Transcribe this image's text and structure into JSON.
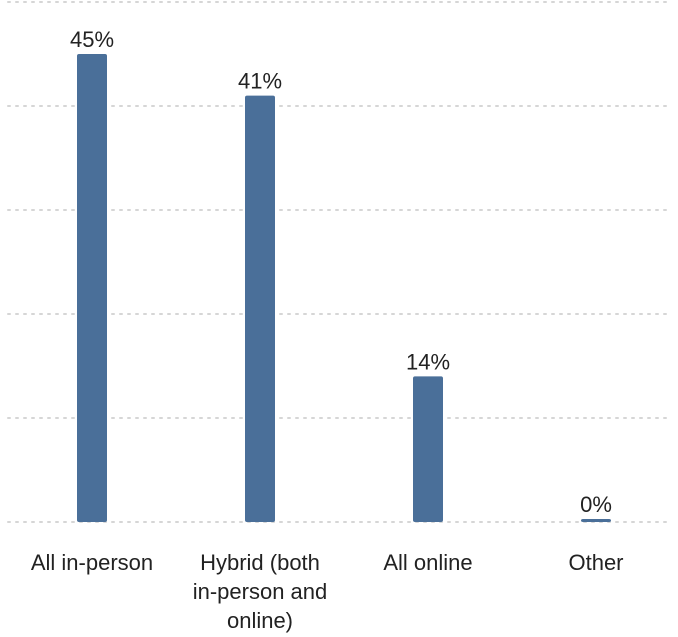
{
  "chart_data": {
    "type": "bar",
    "categories": [
      "All in-person",
      "Hybrid (both in-person and online)",
      "All online",
      "Other"
    ],
    "category_label_lines": [
      [
        "All in-person"
      ],
      [
        "Hybrid (both",
        "in-person and",
        "online)"
      ],
      [
        "All online"
      ],
      [
        "Other"
      ]
    ],
    "values": [
      45,
      41,
      14,
      0
    ],
    "value_labels": [
      "45%",
      "41%",
      "14%",
      "0%"
    ],
    "unit": "%",
    "ylim": [
      0,
      50
    ],
    "grid": true,
    "colors": {
      "bar": "#4a6f99",
      "grid": "#d6d6d6",
      "text": "#222222"
    }
  }
}
